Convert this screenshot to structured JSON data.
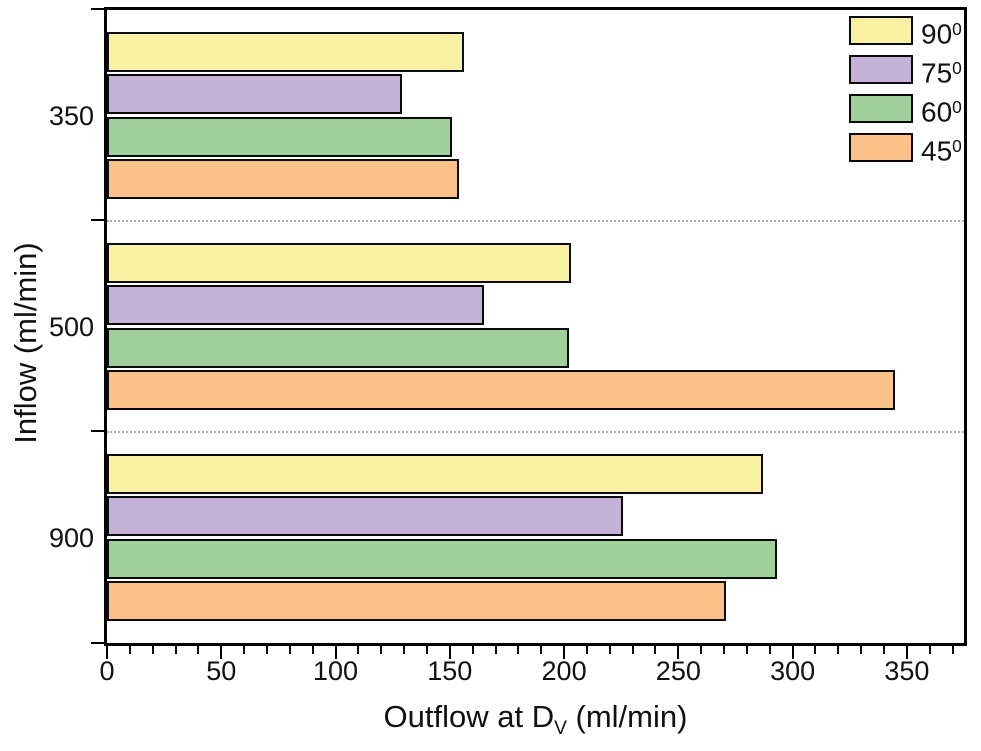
{
  "figure": {
    "xlabel_prefix": "Outflow at D",
    "xlabel_sub": "V",
    "xlabel_suffix": " (ml/min)",
    "ylabel": "Inflow (ml/min)"
  },
  "chart_data": {
    "type": "bar",
    "orientation": "horizontal",
    "title": "",
    "xlabel": "Outflow at D_V (ml/min)",
    "ylabel": "Inflow (ml/min)",
    "categories": [
      "350",
      "500",
      "900"
    ],
    "series": [
      {
        "name": "90",
        "sup": "0",
        "color": "#f7f1a1",
        "values": [
          156,
          203,
          287
        ]
      },
      {
        "name": "75",
        "sup": "0",
        "color": "#c5b3d7",
        "values": [
          129,
          165,
          226
        ]
      },
      {
        "name": "60",
        "sup": "0",
        "color": "#a2d09c",
        "values": [
          151,
          202,
          293
        ]
      },
      {
        "name": "45",
        "sup": "0",
        "color": "#fac189",
        "values": [
          154,
          345,
          271
        ]
      }
    ],
    "xlim": [
      0,
      375
    ],
    "x_major_ticks": [
      0,
      50,
      100,
      150,
      200,
      250,
      300,
      350
    ],
    "x_minor_step": 10,
    "legend_position": "top-right-inside",
    "legend_frame": false,
    "grid": "dashed-group-separators",
    "bar_border_color": "#0a0a0a",
    "separator_color": "#aeaeae",
    "axis_color": "#000000",
    "background_color": "#ffffff"
  }
}
